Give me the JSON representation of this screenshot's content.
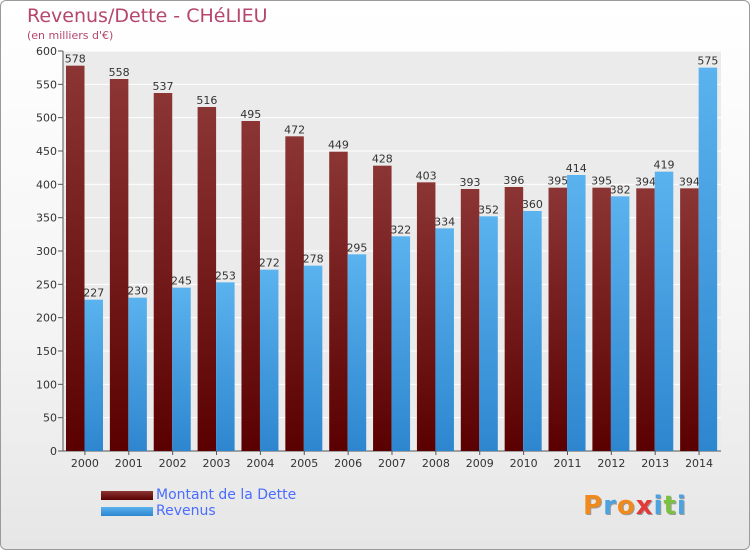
{
  "chart_data": {
    "type": "bar",
    "title": "Revenus/Dette - CHéLIEU",
    "subtitle": "(en milliers d'€)",
    "categories": [
      "2000",
      "2001",
      "2002",
      "2003",
      "2004",
      "2005",
      "2006",
      "2007",
      "2008",
      "2009",
      "2010",
      "2011",
      "2012",
      "2013",
      "2014"
    ],
    "series": [
      {
        "name": "Montant de la Dette",
        "color": "#7a1616",
        "values": [
          578,
          558,
          537,
          516,
          495,
          472,
          449,
          428,
          403,
          393,
          396,
          395,
          395,
          394,
          394
        ]
      },
      {
        "name": "Revenus",
        "color": "#3d9be0",
        "values": [
          227,
          230,
          245,
          253,
          272,
          278,
          295,
          322,
          334,
          352,
          360,
          414,
          382,
          419,
          575
        ]
      }
    ],
    "ylim": [
      0,
      600
    ],
    "yticks": [
      0,
      50,
      100,
      150,
      200,
      250,
      300,
      350,
      400,
      450,
      500,
      550,
      600
    ],
    "grid": true,
    "legend": "bottom-left"
  },
  "logo": {
    "letters": [
      "P",
      "r",
      "o",
      "x",
      "i",
      "t",
      "i"
    ],
    "colors": [
      "#f08a1c",
      "#4aa3df",
      "#f08a1c",
      "#e23a3a",
      "#4aa3df",
      "#7ac142",
      "#4aa3df"
    ]
  }
}
